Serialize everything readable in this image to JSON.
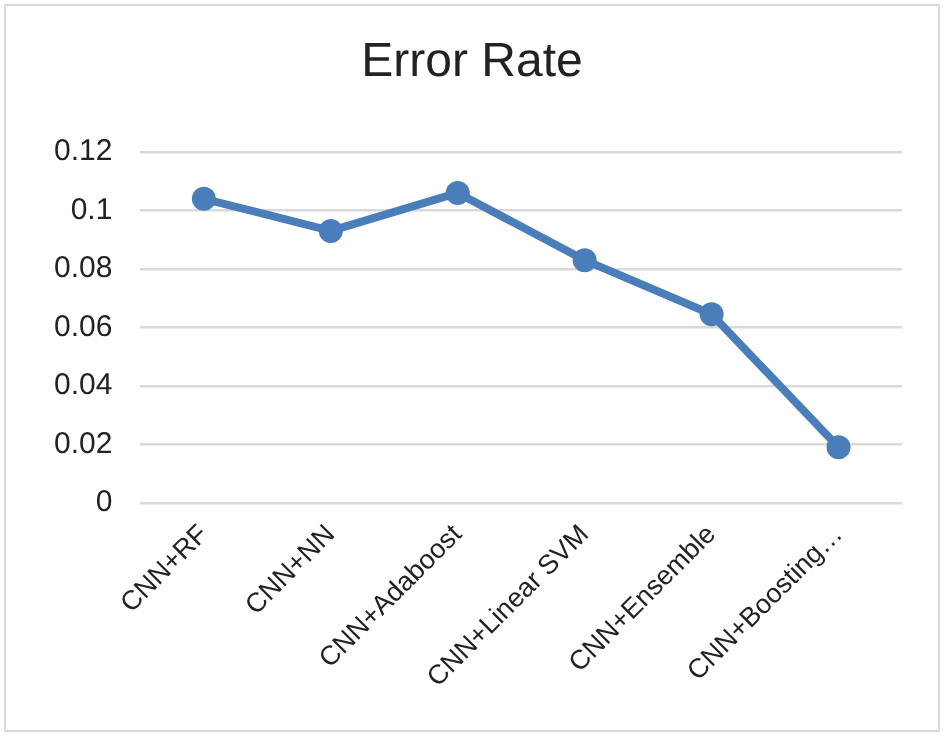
{
  "chart_data": {
    "type": "line",
    "title": "Error Rate",
    "categories": [
      "CNN+RF",
      "CNN+NN",
      "CNN+Adaboost",
      "CNN+Linear SVM",
      "CNN+Ensemble",
      "CNN+Boosting…"
    ],
    "series": [
      {
        "color": "#4a7ebb",
        "values": [
          0.104,
          0.093,
          0.106,
          0.083,
          0.0645,
          0.019
        ]
      }
    ],
    "ylim": [
      0,
      0.12
    ],
    "yticks": [
      0,
      0.02,
      0.04,
      0.06,
      0.08,
      {
        "value": 0.1,
        "label": "0.1"
      },
      0.12
    ],
    "grid": "y",
    "legend": false,
    "marker": "circle",
    "line_style": "solid"
  }
}
